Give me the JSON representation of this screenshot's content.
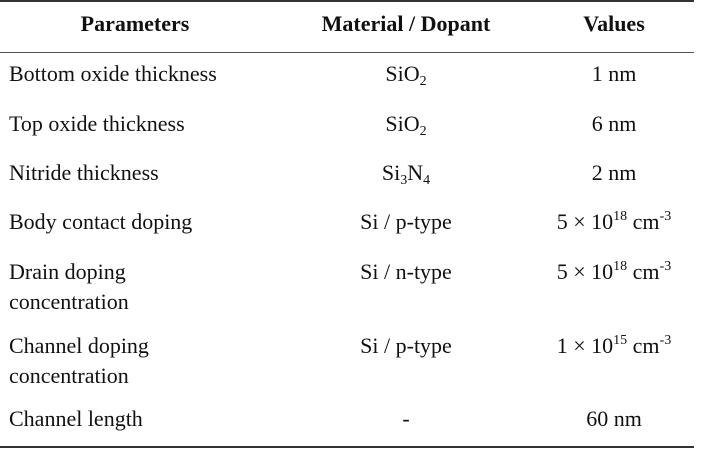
{
  "headers": {
    "parameters": "Parameters",
    "material": "Material / Dopant",
    "values": "Values"
  },
  "rows": [
    {
      "param_lines": [
        "Bottom oxide thickness"
      ],
      "material": {
        "base": "SiO",
        "sub": "2",
        "base2": "",
        "sub2": ""
      },
      "value": {
        "pre": "1 nm",
        "sup": "",
        "post": ""
      }
    },
    {
      "param_lines": [
        "Top oxide thickness"
      ],
      "material": {
        "base": "SiO",
        "sub": "2",
        "base2": "",
        "sub2": ""
      },
      "value": {
        "pre": "6 nm",
        "sup": "",
        "post": ""
      }
    },
    {
      "param_lines": [
        "Nitride thickness"
      ],
      "material": {
        "base": "Si",
        "sub": "3",
        "base2": "N",
        "sub2": "4"
      },
      "value": {
        "pre": "2 nm",
        "sup": "",
        "post": ""
      }
    },
    {
      "param_lines": [
        "Body contact doping"
      ],
      "material": {
        "base": "Si / p-type",
        "sub": "",
        "base2": "",
        "sub2": ""
      },
      "value": {
        "pre": "5 × 10",
        "sup": "18",
        "post": " cm",
        "sup2": "-3"
      }
    },
    {
      "param_lines": [
        "Drain doping",
        "concentration"
      ],
      "material": {
        "base": "Si / n-type",
        "sub": "",
        "base2": "",
        "sub2": ""
      },
      "value": {
        "pre": "5 × 10",
        "sup": "18",
        "post": " cm",
        "sup2": "-3"
      }
    },
    {
      "param_lines": [
        "Channel doping",
        "concentration"
      ],
      "material": {
        "base": "Si / p-type",
        "sub": "",
        "base2": "",
        "sub2": ""
      },
      "value": {
        "pre": "1 × 10",
        "sup": "15",
        "post": " cm",
        "sup2": "-3"
      }
    },
    {
      "param_lines": [
        "Channel length"
      ],
      "material": {
        "base": "-",
        "sub": "",
        "base2": "",
        "sub2": ""
      },
      "value": {
        "pre": "60 nm",
        "sup": "",
        "post": ""
      }
    }
  ]
}
